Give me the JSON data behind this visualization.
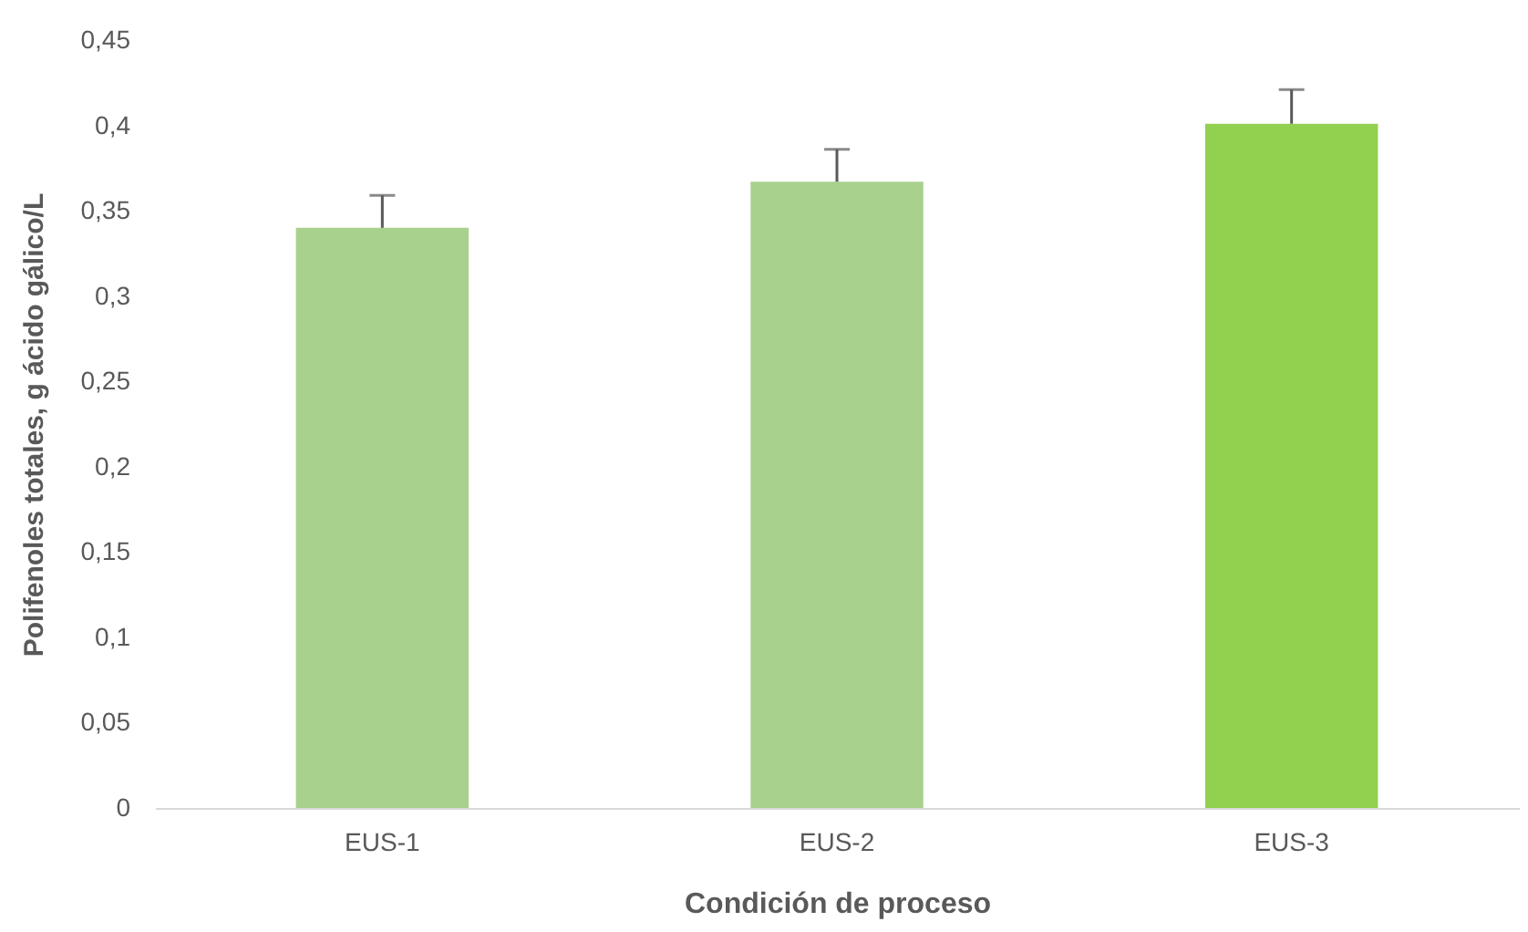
{
  "chart_data": {
    "type": "bar",
    "xlabel": "Condición de proceso",
    "ylabel": "Polifenoles totales, g ácido gálico/L",
    "categories": [
      "EUS-1",
      "EUS-2",
      "EUS-3"
    ],
    "values": [
      0.34,
      0.367,
      0.401
    ],
    "colors": [
      "#a9d18e",
      "#a9d18e",
      "#92d050"
    ],
    "errors": [
      [
        0.34,
        0.359
      ],
      [
        0.367,
        0.386
      ],
      [
        0.401,
        0.421
      ]
    ],
    "ylim": [
      0,
      0.45
    ],
    "yticks": [
      {
        "value": 0,
        "label": "0"
      },
      {
        "value": 0.05,
        "label": "0,05"
      },
      {
        "value": 0.1,
        "label": "0,1"
      },
      {
        "value": 0.15,
        "label": "0,15"
      },
      {
        "value": 0.2,
        "label": "0,2"
      },
      {
        "value": 0.25,
        "label": "0,25"
      },
      {
        "value": 0.3,
        "label": "0,3"
      },
      {
        "value": 0.35,
        "label": "0,35"
      },
      {
        "value": 0.4,
        "label": "0,4"
      },
      {
        "value": 0.45,
        "label": "0,45"
      }
    ]
  }
}
